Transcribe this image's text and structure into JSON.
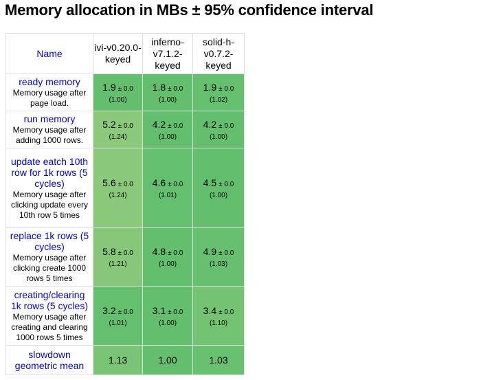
{
  "title": "Memory allocation in MBs ± 95% confidence interval",
  "header": {
    "name_label": "Name",
    "frameworks": [
      "ivi-v0.20.0-keyed",
      "inferno-v7.1.2-keyed",
      "solid-h-v0.7.2-keyed"
    ]
  },
  "rows": [
    {
      "name": "ready memory",
      "description": "Memory usage after page load.",
      "cells": [
        {
          "mean": "1.9",
          "ci": "± 0.0",
          "factor": "(1.00)",
          "color": "#63bf6e"
        },
        {
          "mean": "1.8",
          "ci": "± 0.0",
          "factor": "(1.00)",
          "color": "#63bf6e"
        },
        {
          "mean": "1.9",
          "ci": "± 0.0",
          "factor": "(1.02)",
          "color": "#64bf6e"
        }
      ]
    },
    {
      "name": "run memory",
      "description": "Memory usage after adding 1000 rows.",
      "cells": [
        {
          "mean": "5.2",
          "ci": "± 0.0",
          "factor": "(1.24)",
          "color": "#8bc97b"
        },
        {
          "mean": "4.2",
          "ci": "± 0.0",
          "factor": "(1.00)",
          "color": "#63bf6e"
        },
        {
          "mean": "4.2",
          "ci": "± 0.0",
          "factor": "(1.00)",
          "color": "#63bf6e"
        }
      ]
    },
    {
      "name": "update eatch 10th row for 1k rows (5 cycles)",
      "description": "Memory usage after clicking update every 10th row 5 times",
      "cells": [
        {
          "mean": "5.6",
          "ci": "± 0.0",
          "factor": "(1.24)",
          "color": "#8bc97b"
        },
        {
          "mean": "4.6",
          "ci": "± 0.0",
          "factor": "(1.01)",
          "color": "#64bf6e"
        },
        {
          "mean": "4.5",
          "ci": "± 0.0",
          "factor": "(1.00)",
          "color": "#63bf6e"
        }
      ]
    },
    {
      "name": "replace 1k rows (5 cycles)",
      "description": "Memory usage after clicking create 1000 rows 5 times",
      "cells": [
        {
          "mean": "5.8",
          "ci": "± 0.0",
          "factor": "(1.21)",
          "color": "#86c779"
        },
        {
          "mean": "4.8",
          "ci": "± 0.0",
          "factor": "(1.00)",
          "color": "#63bf6e"
        },
        {
          "mean": "4.9",
          "ci": "± 0.0",
          "factor": "(1.03)",
          "color": "#67c06f"
        }
      ]
    },
    {
      "name": "creating/clearing 1k rows (5 cycles)",
      "description": "Memory usage after creating and clearing 1000 rows 5 times",
      "cells": [
        {
          "mean": "3.2",
          "ci": "± 0.0",
          "factor": "(1.01)",
          "color": "#64bf6e"
        },
        {
          "mean": "3.1",
          "ci": "± 0.0",
          "factor": "(1.00)",
          "color": "#63bf6e"
        },
        {
          "mean": "3.4",
          "ci": "± 0.0",
          "factor": "(1.10)",
          "color": "#73c373"
        }
      ]
    }
  ],
  "geomean": {
    "name": "slowdown geometric mean",
    "values": [
      {
        "value": "1.13",
        "color": "#7ac575"
      },
      {
        "value": "1.00",
        "color": "#63bf6e"
      },
      {
        "value": "1.03",
        "color": "#68c16f"
      }
    ]
  }
}
